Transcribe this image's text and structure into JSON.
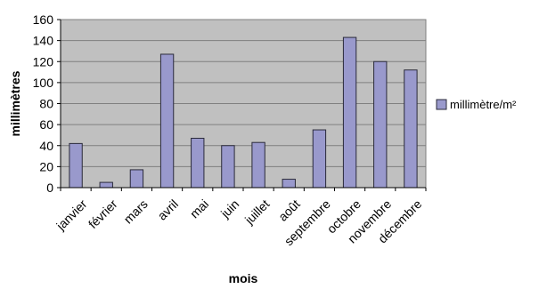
{
  "chart_data": {
    "type": "bar",
    "title": "",
    "xlabel": "mois",
    "ylabel": "millimètres",
    "ylim": [
      0,
      160
    ],
    "yticks": [
      0,
      20,
      40,
      60,
      80,
      100,
      120,
      140,
      160
    ],
    "grid": "horizontal",
    "legend_position": "right",
    "categories": [
      "janvier",
      "février",
      "mars",
      "avril",
      "mai",
      "juin",
      "juillet",
      "août",
      "septembre",
      "octobre",
      "novembre",
      "décembre"
    ],
    "series": [
      {
        "name": "millimètre/m²",
        "values": [
          42,
          5,
          17,
          127,
          47,
          40,
          43,
          8,
          55,
          143,
          120,
          112
        ]
      }
    ],
    "colors": {
      "bar_fill": "#9999cc",
      "bar_stroke": "#2a2a3a",
      "plot_background": "#c0c0c0",
      "grid": "#7f7f7f"
    }
  }
}
